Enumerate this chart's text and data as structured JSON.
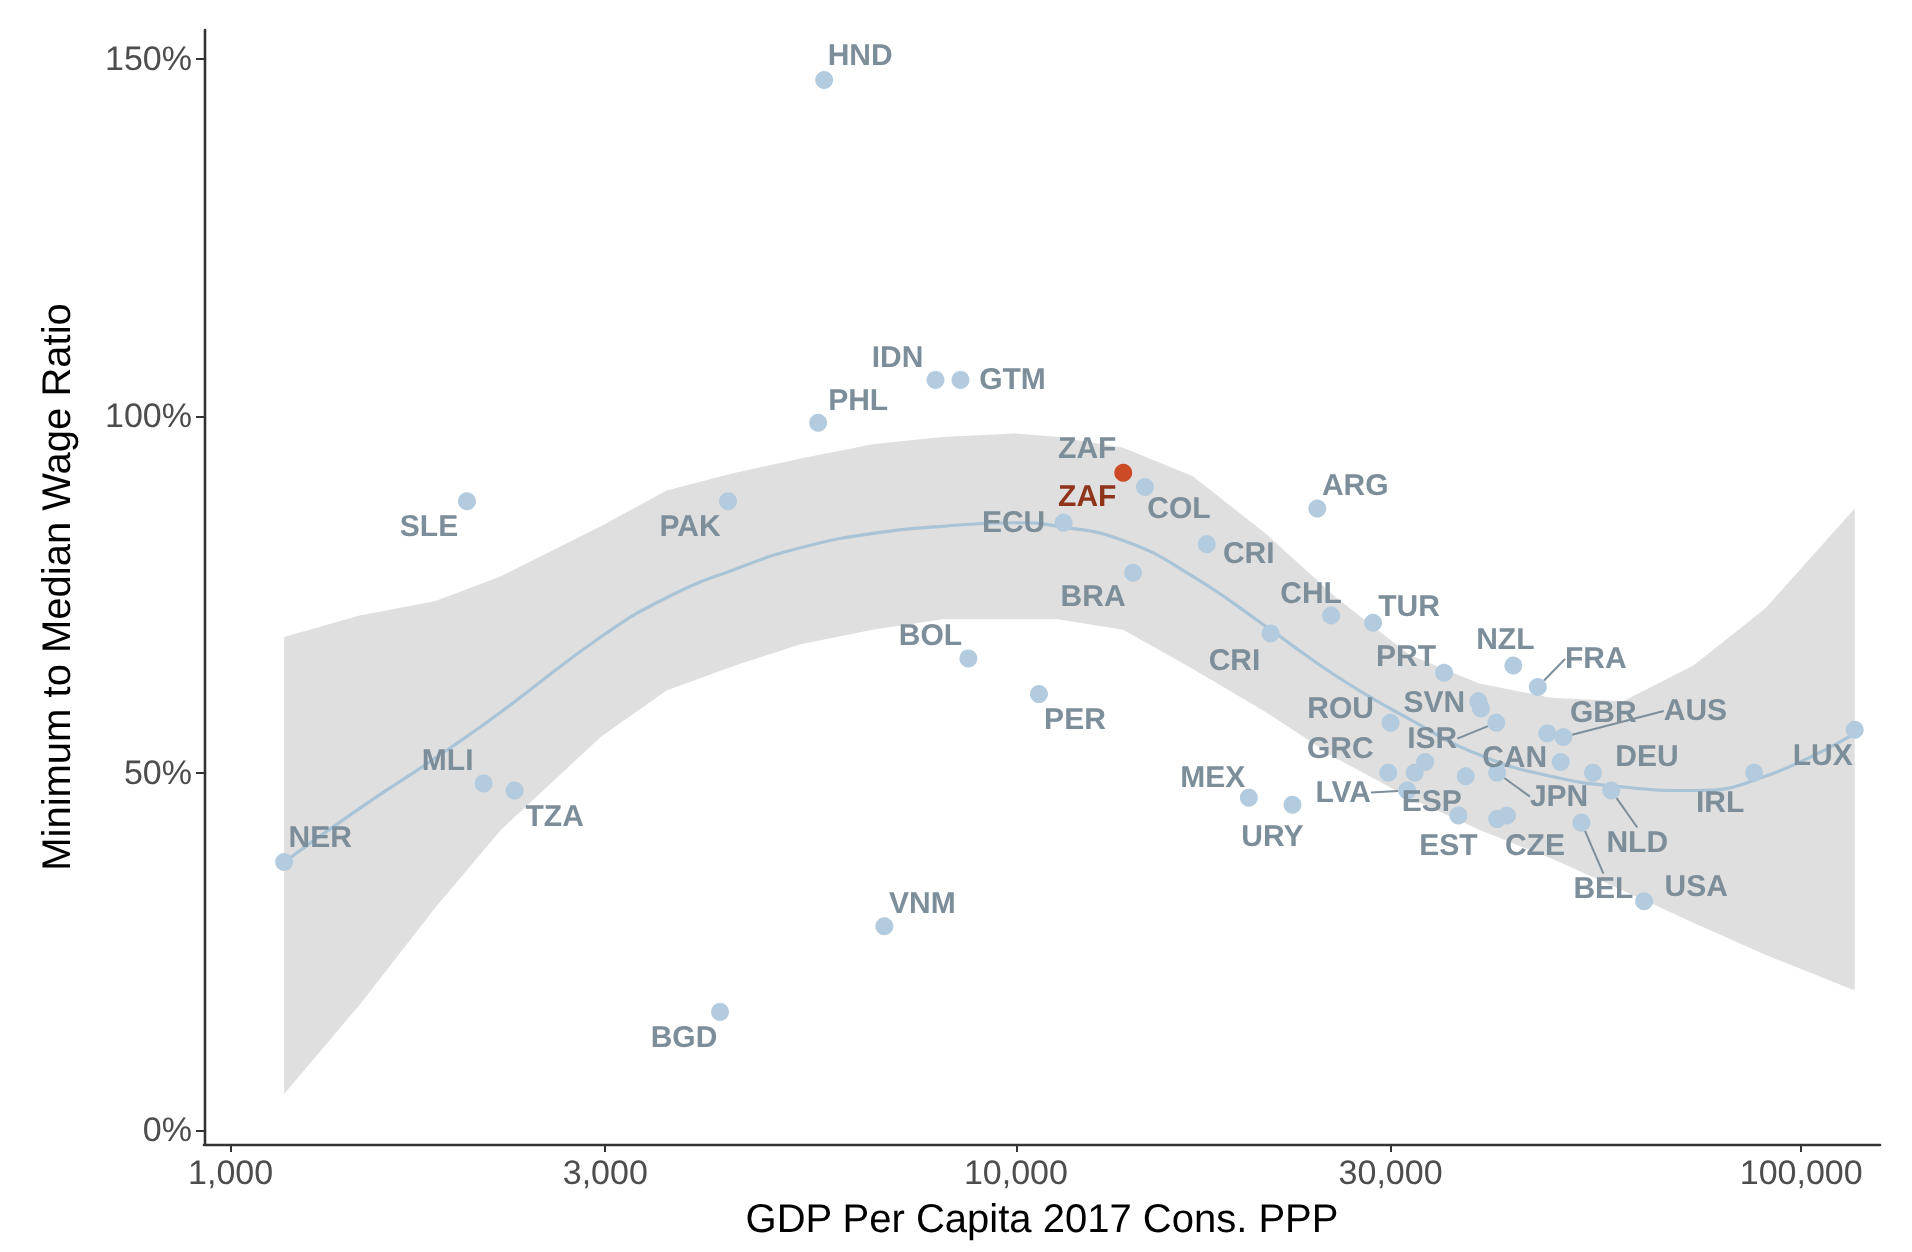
{
  "chart_data": {
    "type": "scatter",
    "xlabel": "GDP Per Capita 2017 Cons. PPP",
    "ylabel": "Minimum to Median Wage Ratio",
    "log": "x",
    "xlim": [
      925,
      126000
    ],
    "ylim": [
      -2,
      154
    ],
    "xticks": [
      {
        "value": 1000,
        "label": "1,000"
      },
      {
        "value": 3000,
        "label": "3,000"
      },
      {
        "value": 10000,
        "label": "10,000"
      },
      {
        "value": 30000,
        "label": "30,000"
      },
      {
        "value": 100000,
        "label": "100,000"
      }
    ],
    "yticks": [
      {
        "value": 0,
        "label": "0%"
      },
      {
        "value": 50,
        "label": "50%"
      },
      {
        "value": 100,
        "label": "100%"
      },
      {
        "value": 150,
        "label": "150%"
      }
    ],
    "grid": false,
    "marker": "circle",
    "series": [
      {
        "type": "line",
        "marker": "none",
        "color": "#a9c3d7",
        "x": [
          1170,
          1460,
          1820,
          2210,
          2960,
          3590,
          4390,
          5320,
          6570,
          8070,
          9970,
          11300,
          13700,
          16800,
          20800,
          25600,
          31700,
          38900,
          48000,
          59300,
          72900,
          90000,
          117000
        ],
        "values": [
          37.5,
          45,
          52,
          58.5,
          69,
          74.5,
          78.5,
          81.5,
          83.5,
          84.5,
          85,
          84.5,
          82.5,
          77.5,
          70.5,
          63.5,
          57.5,
          52.5,
          49.5,
          48,
          47.5,
          49.5,
          55.5
        ],
        "lower": [
          5,
          17.5,
          31,
          42,
          55,
          61.5,
          65,
          68,
          70,
          71.5,
          71.5,
          71.5,
          70,
          64.5,
          58.5,
          52,
          46.5,
          42,
          38,
          33.5,
          29,
          24.5,
          19.5
        ],
        "upper": [
          69,
          72,
          74,
          77.5,
          84.5,
          89.5,
          92,
          94,
          96,
          97,
          97.5,
          97,
          95.5,
          91.5,
          83.5,
          74.5,
          66.5,
          62.5,
          60.5,
          60,
          65,
          73,
          87
        ]
      },
      {
        "color": "#b3cbde",
        "x": [
          5700,
          7900,
          8500,
          5600,
          2000,
          4300,
          14600,
          11500,
          17500,
          14100,
          24200,
          25200,
          28500,
          21100,
          8700,
          10700,
          35100,
          43000,
          46200,
          38800,
          39100,
          30000,
          40900,
          47500,
          49800,
          29800,
          32200,
          33200,
          31500,
          37400,
          41000,
          49400,
          54300,
          57300,
          87100,
          117000,
          19800,
          22500,
          36600,
          41000,
          42200,
          52500,
          63100,
          6800,
          4200,
          2100,
          2300,
          1170
        ],
        "values": [
          147,
          105,
          105,
          99,
          88,
          88,
          90,
          85,
          82,
          78,
          87,
          72,
          71,
          69.5,
          66,
          61,
          64,
          65,
          62,
          60,
          59,
          57,
          57,
          55.5,
          55,
          50,
          50,
          51.5,
          47.5,
          49.5,
          50,
          51.5,
          50,
          47.5,
          50,
          56,
          46.5,
          45.5,
          44,
          43.5,
          44,
          43,
          32,
          28.5,
          16.5,
          48.5,
          47.5,
          37.5
        ],
        "value_labels": [
          "HND",
          "IDN",
          "GTM",
          "PHL",
          "SLE",
          "PAK",
          "COL",
          "ECU",
          "CRI",
          "BRA",
          "ARG",
          "CHL",
          "TUR",
          "CRI",
          "BOL",
          "PER",
          "PRT",
          "NZL",
          "FRA",
          "SVN",
          null,
          "ROU",
          "ISR",
          "GBR",
          "AUS",
          "GRC",
          null,
          null,
          "LVA",
          "ESP",
          "JPN",
          "CAN",
          "DEU",
          "NLD",
          "IRL",
          "LUX",
          "MEX",
          "URY",
          "EST",
          null,
          "CZE",
          "BEL",
          "USA",
          "VNM",
          "BGD",
          "MLI",
          "TZA",
          "NER"
        ]
      },
      {
        "color": "#cc4a26",
        "x": [
          13700
        ],
        "values": [
          92
        ],
        "value_labels": [
          "ZAF"
        ]
      }
    ],
    "annotations": [
      {
        "text": "ZAF",
        "x": 13700,
        "y": 92
      }
    ]
  }
}
